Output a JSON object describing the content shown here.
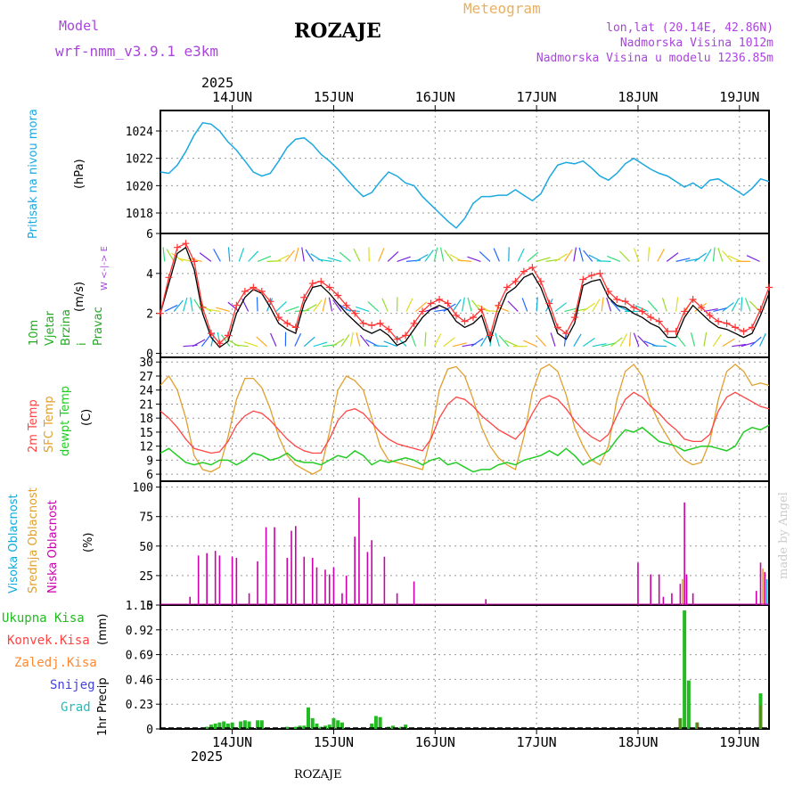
{
  "header": {
    "model_label": "Model",
    "model_name": "wrf-nmm_v3.9.1  e3km",
    "station": "ROZAJE",
    "product": "Meteogram",
    "coords": "lon,lat (20.14E, 42.86N)",
    "elevation": "Nadmorska Visina 1012m",
    "model_elevation": "Nadmorska Visina u modelu 1236.85m",
    "footer_station": "ROZAJE",
    "credit": "made by Angel"
  },
  "colors": {
    "pressure": "#1ca8e0",
    "wind_speed": "#000000",
    "wind_gust": "#ff3333",
    "temp_2m": "#ff4444",
    "temp_sfc": "#e0a030",
    "dewpoint": "#22cc22",
    "cloud_high": "#11aadd",
    "cloud_mid": "#e0a030",
    "cloud_low": "#cc00aa",
    "precip_total": "#22bb22",
    "precip_conv": "#ff4444",
    "precip_frz": "#ff8833",
    "precip_snow": "#4444dd",
    "precip_hail": "#22bbbb",
    "purple_text": "#aa44dd",
    "orange_text": "#e8b060"
  },
  "time_axis": {
    "year": "2025",
    "days": [
      "14JUN",
      "15JUN",
      "16JUN",
      "17JUN",
      "18JUN",
      "19JUN"
    ],
    "start_hour": -5,
    "end_hour": 139,
    "day_tick_hours": [
      12,
      36,
      60,
      84,
      108,
      132
    ]
  },
  "chart_data": [
    {
      "type": "line",
      "id": "pressure",
      "ylabel": "Pritisak na nivou mora",
      "unit": "(hPa)",
      "ylim": [
        1016.5,
        1025.5
      ],
      "yticks": [
        1018,
        1020,
        1022,
        1024
      ],
      "x": [
        -5,
        -3,
        -1,
        1,
        3,
        5,
        7,
        9,
        11,
        13,
        15,
        17,
        19,
        21,
        23,
        25,
        27,
        29,
        31,
        33,
        35,
        37,
        39,
        41,
        43,
        45,
        47,
        49,
        51,
        53,
        55,
        57,
        59,
        61,
        63,
        65,
        67,
        69,
        71,
        73,
        75,
        77,
        79,
        81,
        83,
        85,
        87,
        89,
        91,
        93,
        95,
        97,
        99,
        101,
        103,
        105,
        107,
        109,
        111,
        113,
        115,
        117,
        119,
        121,
        123,
        125,
        127,
        129,
        131,
        133,
        135,
        137,
        139
      ],
      "values": [
        1021.0,
        1020.9,
        1021.5,
        1022.5,
        1023.7,
        1024.6,
        1024.5,
        1024.0,
        1023.2,
        1022.6,
        1021.8,
        1021.0,
        1020.7,
        1020.9,
        1021.8,
        1022.8,
        1023.4,
        1023.5,
        1023.0,
        1022.3,
        1021.8,
        1021.2,
        1020.5,
        1019.8,
        1019.2,
        1019.5,
        1020.3,
        1021.0,
        1020.7,
        1020.2,
        1020.0,
        1019.2,
        1018.6,
        1018.0,
        1017.4,
        1016.9,
        1017.6,
        1018.7,
        1019.2,
        1019.2,
        1019.3,
        1019.3,
        1019.7,
        1019.3,
        1018.9,
        1019.4,
        1020.6,
        1021.5,
        1021.7,
        1021.6,
        1021.8,
        1021.3,
        1020.7,
        1020.4,
        1020.9,
        1021.6,
        1022.0,
        1021.6,
        1021.2,
        1020.9,
        1020.7,
        1020.3,
        1019.9,
        1020.2,
        1019.8,
        1020.4,
        1020.5,
        1020.1,
        1019.7,
        1019.3,
        1019.8,
        1020.5,
        1020.3
      ]
    },
    {
      "type": "line",
      "id": "wind",
      "ylabel": "10m Vjetar Brzina i Pravac",
      "unit": "(m/s)",
      "compass": "W  <-|->  E",
      "ylim": [
        -0.2,
        6
      ],
      "yticks": [
        0,
        2,
        4,
        6
      ],
      "x": [
        -5,
        -3,
        -1,
        1,
        3,
        5,
        7,
        9,
        11,
        13,
        15,
        17,
        19,
        21,
        23,
        25,
        27,
        29,
        31,
        33,
        35,
        37,
        39,
        41,
        43,
        45,
        47,
        49,
        51,
        53,
        55,
        57,
        59,
        61,
        63,
        65,
        67,
        69,
        71,
        73,
        75,
        77,
        79,
        81,
        83,
        85,
        87,
        89,
        91,
        93,
        95,
        97,
        99,
        101,
        103,
        105,
        107,
        109,
        111,
        113,
        115,
        117,
        119,
        121,
        123,
        125,
        127,
        129,
        131,
        133,
        135,
        137,
        139
      ],
      "series": [
        {
          "name": "speed",
          "values": [
            2.0,
            3.5,
            5.0,
            5.3,
            4.2,
            2.0,
            0.8,
            0.3,
            0.6,
            2.0,
            2.8,
            3.2,
            3.0,
            2.3,
            1.5,
            1.2,
            1.0,
            2.5,
            3.3,
            3.4,
            3.0,
            2.5,
            2.0,
            1.6,
            1.2,
            1.0,
            1.2,
            0.9,
            0.4,
            0.6,
            1.2,
            1.8,
            2.2,
            2.4,
            2.2,
            1.6,
            1.3,
            1.5,
            1.9,
            0.6,
            2.0,
            3.0,
            3.3,
            3.8,
            4.0,
            3.3,
            2.2,
            1.0,
            0.7,
            1.5,
            3.4,
            3.6,
            3.7,
            2.8,
            2.4,
            2.3,
            2.0,
            1.8,
            1.5,
            1.3,
            0.8,
            0.8,
            1.8,
            2.4,
            2.0,
            1.6,
            1.3,
            1.2,
            1.0,
            0.8,
            1.0,
            1.9,
            3.0
          ]
        },
        {
          "name": "gust",
          "values": [
            2.0,
            3.8,
            5.3,
            5.5,
            4.6,
            2.3,
            1.0,
            0.5,
            0.9,
            2.4,
            3.1,
            3.3,
            3.1,
            2.6,
            1.8,
            1.5,
            1.3,
            2.8,
            3.5,
            3.6,
            3.3,
            2.9,
            2.4,
            2.0,
            1.5,
            1.4,
            1.5,
            1.2,
            0.7,
            0.9,
            1.5,
            2.1,
            2.5,
            2.7,
            2.5,
            1.9,
            1.6,
            1.8,
            2.2,
            0.9,
            2.4,
            3.3,
            3.6,
            4.1,
            4.3,
            3.6,
            2.5,
            1.3,
            1.0,
            1.8,
            3.7,
            3.9,
            4.0,
            3.1,
            2.7,
            2.6,
            2.3,
            2.1,
            1.8,
            1.6,
            1.1,
            1.1,
            2.1,
            2.7,
            2.3,
            1.9,
            1.6,
            1.5,
            1.3,
            1.1,
            1.3,
            2.2,
            3.3
          ]
        }
      ]
    },
    {
      "type": "line",
      "id": "temperature",
      "ylabel": "2m Temp / SFC Temp / dewpt Temp",
      "legend": [
        "2m Temp",
        "SFC Temp",
        "dewpt Temp"
      ],
      "unit": "(C)",
      "ylim": [
        4.5,
        31
      ],
      "yticks": [
        6,
        9,
        12,
        15,
        18,
        21,
        24,
        27,
        30
      ],
      "x": [
        -5,
        -3,
        -1,
        1,
        3,
        5,
        7,
        9,
        11,
        13,
        15,
        17,
        19,
        21,
        23,
        25,
        27,
        29,
        31,
        33,
        35,
        37,
        39,
        41,
        43,
        45,
        47,
        49,
        51,
        53,
        55,
        57,
        59,
        61,
        63,
        65,
        67,
        69,
        71,
        73,
        75,
        77,
        79,
        81,
        83,
        85,
        87,
        89,
        91,
        93,
        95,
        97,
        99,
        101,
        103,
        105,
        107,
        109,
        111,
        113,
        115,
        117,
        119,
        121,
        123,
        125,
        127,
        129,
        131,
        133,
        135,
        137,
        139
      ],
      "series": [
        {
          "name": "2m Temp",
          "values": [
            19.5,
            18.0,
            16.0,
            13.5,
            11.5,
            11.0,
            10.5,
            10.8,
            13.0,
            16.5,
            18.5,
            19.5,
            19.0,
            17.5,
            15.5,
            13.5,
            12.0,
            11.0,
            10.5,
            10.5,
            13.5,
            17.5,
            19.5,
            20.0,
            19.0,
            17.0,
            15.0,
            13.5,
            12.5,
            12.0,
            11.5,
            11.0,
            13.5,
            18.0,
            21.0,
            22.5,
            22.0,
            20.5,
            18.5,
            17.0,
            15.5,
            14.5,
            13.5,
            15.5,
            19.0,
            22.0,
            22.8,
            22.0,
            20.0,
            17.5,
            15.5,
            14.0,
            13.0,
            14.5,
            18.5,
            22.0,
            23.5,
            22.5,
            20.5,
            19.0,
            17.0,
            15.5,
            13.5,
            13.0,
            13.0,
            14.5,
            19.5,
            22.5,
            23.5,
            22.5,
            21.5,
            20.5,
            20.0
          ]
        },
        {
          "name": "SFC Temp",
          "values": [
            25.0,
            27.0,
            24.0,
            18.0,
            10.0,
            7.0,
            6.5,
            7.5,
            14.0,
            22.0,
            26.5,
            26.5,
            24.5,
            20.0,
            14.0,
            10.0,
            8.0,
            7.0,
            6.0,
            7.0,
            15.0,
            24.0,
            27.0,
            26.0,
            24.0,
            18.0,
            12.0,
            9.0,
            8.5,
            8.0,
            7.5,
            7.0,
            14.0,
            24.0,
            28.5,
            29.0,
            27.0,
            22.0,
            16.0,
            12.0,
            9.5,
            8.0,
            7.0,
            14.0,
            23.5,
            28.5,
            29.5,
            28.0,
            23.0,
            16.0,
            12.0,
            9.0,
            8.0,
            12.0,
            22.0,
            28.0,
            29.5,
            27.0,
            21.0,
            17.0,
            14.0,
            11.0,
            9.0,
            8.0,
            8.5,
            13.0,
            22.0,
            28.0,
            29.5,
            28.0,
            25.0,
            25.5,
            25.0
          ]
        },
        {
          "name": "dewpt Temp",
          "values": [
            10.5,
            11.5,
            10.0,
            8.5,
            8.0,
            8.5,
            8.0,
            9.0,
            9.0,
            8.0,
            9.0,
            10.5,
            10.0,
            9.0,
            9.5,
            10.5,
            9.0,
            8.5,
            8.5,
            8.0,
            9.0,
            10.0,
            9.5,
            11.0,
            10.0,
            8.0,
            9.0,
            8.5,
            9.0,
            9.5,
            9.0,
            8.0,
            9.0,
            9.5,
            8.0,
            8.5,
            7.5,
            6.5,
            7.0,
            7.0,
            8.0,
            8.5,
            8.0,
            9.0,
            9.5,
            10.0,
            11.0,
            10.0,
            11.5,
            10.0,
            8.0,
            9.0,
            10.0,
            11.0,
            13.5,
            15.5,
            15.0,
            16.0,
            14.5,
            13.0,
            12.5,
            12.0,
            11.0,
            11.5,
            12.0,
            12.0,
            11.5,
            11.0,
            12.0,
            15.0,
            16.0,
            15.5,
            16.5
          ]
        }
      ]
    },
    {
      "type": "bar",
      "id": "cloud",
      "ylabel": "Visoka Oblacnost / Srednja Oblacnost / Niska Oblacnost",
      "legend": [
        "Visoka Oblacnost",
        "Srednja Oblacnost",
        "Niska Oblacnost"
      ],
      "unit": "(%)",
      "ylim": [
        0,
        105
      ],
      "yticks": [
        0,
        25,
        50,
        75,
        100
      ],
      "x": [
        2,
        4,
        6,
        8,
        9,
        12,
        13,
        16,
        18,
        20,
        22,
        25,
        26,
        27,
        29,
        31,
        32,
        34,
        35,
        36,
        38,
        39,
        41,
        42,
        44,
        45,
        48,
        51,
        55,
        72,
        108,
        111,
        113,
        114,
        116,
        118,
        119,
        119.5,
        121,
        136,
        137,
        138
      ],
      "low_values": [
        7,
        42,
        44,
        46,
        42,
        41,
        40,
        10,
        37,
        66,
        66,
        40,
        63,
        67,
        41,
        40,
        32,
        30,
        26,
        32,
        10,
        25,
        58,
        91,
        45,
        55,
        41,
        10,
        20,
        5,
        36,
        26,
        26,
        7,
        10,
        18,
        87,
        26,
        10,
        12,
        36,
        28
      ],
      "mid_values": [
        0,
        0,
        0,
        0,
        0,
        0,
        0,
        0,
        0,
        0,
        0,
        0,
        0,
        0,
        0,
        0,
        0,
        0,
        0,
        0,
        0,
        0,
        0,
        0,
        0,
        0,
        0,
        0,
        0,
        0,
        0,
        0,
        0,
        0,
        0,
        0,
        22,
        0,
        0,
        0,
        0,
        31
      ],
      "high_values": [
        0,
        0,
        0,
        0,
        0,
        0,
        0,
        0,
        0,
        0,
        0,
        0,
        0,
        0,
        0,
        0,
        0,
        0,
        0,
        0,
        0,
        0,
        0,
        0,
        0,
        0,
        0,
        0,
        0,
        0,
        0,
        0,
        0,
        0,
        0,
        0,
        24,
        0,
        0,
        0,
        0,
        22
      ]
    },
    {
      "type": "bar",
      "id": "precip",
      "ylabel": "1hr Precip",
      "legend": [
        "Ukupna Kisa",
        "Konvek.Kisa",
        "Zaledj.Kisa",
        "Snijeg",
        "Grad"
      ],
      "unit": "(mm)",
      "ylim": [
        0,
        1.15
      ],
      "yticks": [
        "0",
        "0.23",
        "0.46",
        "0.69",
        "0.92",
        "1.15"
      ],
      "x": [
        6,
        7,
        8,
        9,
        10,
        11,
        12,
        14,
        15,
        16,
        18,
        19,
        25,
        27,
        28,
        29,
        30,
        31,
        32,
        33,
        34,
        35,
        36,
        37,
        38,
        45,
        46,
        47,
        49,
        50,
        52,
        53,
        118,
        119,
        120,
        122,
        137
      ],
      "total_values": [
        0.02,
        0.04,
        0.05,
        0.06,
        0.07,
        0.05,
        0.06,
        0.07,
        0.08,
        0.07,
        0.08,
        0.08,
        0.02,
        0.02,
        0.03,
        0.03,
        0.2,
        0.1,
        0.05,
        0.02,
        0.03,
        0.04,
        0.1,
        0.08,
        0.06,
        0.05,
        0.12,
        0.11,
        0.02,
        0.03,
        0.02,
        0.04,
        0.1,
        1.1,
        0.45,
        0.06,
        0.33
      ],
      "conv_values": [
        0,
        0,
        0,
        0,
        0,
        0,
        0,
        0,
        0,
        0,
        0,
        0,
        0,
        0,
        0,
        0,
        0,
        0,
        0,
        0,
        0,
        0,
        0,
        0,
        0,
        0,
        0,
        0,
        0,
        0,
        0,
        0,
        0.1,
        0,
        0,
        0.06,
        0.22
      ]
    }
  ]
}
